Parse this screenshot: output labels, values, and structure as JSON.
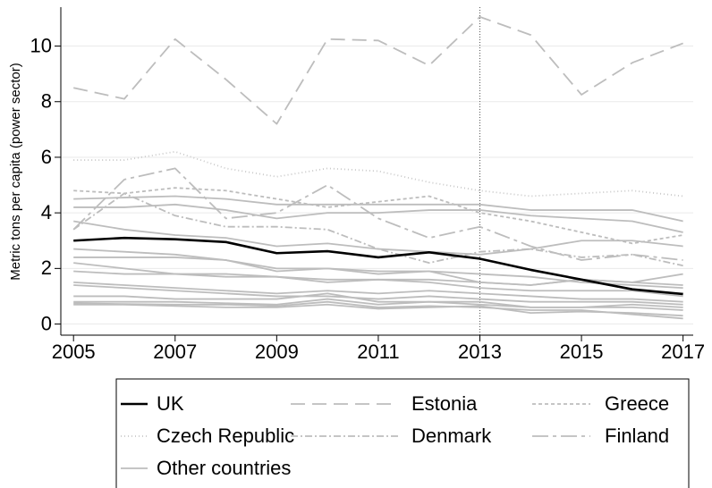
{
  "chart_data": {
    "type": "line",
    "y_label": "Metric tons per capita (power sector)",
    "x": [
      2005,
      2006,
      2007,
      2008,
      2009,
      2010,
      2011,
      2012,
      2013,
      2014,
      2015,
      2016,
      2017
    ],
    "xlim": [
      2004.75,
      2017.2
    ],
    "xticks": [
      2005,
      2007,
      2009,
      2011,
      2013,
      2015,
      2017
    ],
    "ylim": [
      -0.4,
      11.4
    ],
    "yticks": [
      0,
      2,
      4,
      6,
      8,
      10
    ],
    "grid": true,
    "xline": 2013,
    "series": [
      {
        "name": "UK",
        "color": "#000000",
        "dash": "none",
        "width": 2.6,
        "values": [
          3.0,
          3.1,
          3.05,
          2.95,
          2.55,
          2.62,
          2.4,
          2.58,
          2.35,
          1.95,
          1.6,
          1.25,
          1.08
        ]
      },
      {
        "name": "Estonia",
        "color": "#bdbdbd",
        "dash": "16,8",
        "width": 1.8,
        "values": [
          8.5,
          8.1,
          10.25,
          8.8,
          7.2,
          10.25,
          10.2,
          9.3,
          11.05,
          10.4,
          8.25,
          9.4,
          10.1
        ]
      },
      {
        "name": "Greece",
        "color": "#bdbdbd",
        "dash": "4,3",
        "width": 1.8,
        "values": [
          4.8,
          4.7,
          4.9,
          4.8,
          4.5,
          4.2,
          4.4,
          4.6,
          4.0,
          3.7,
          3.3,
          2.9,
          3.2
        ]
      },
      {
        "name": "Czech Republic",
        "color": "#c8c8c8",
        "dash": "1,3",
        "width": 1.8,
        "values": [
          5.9,
          5.9,
          6.2,
          5.6,
          5.3,
          5.6,
          5.5,
          5.1,
          4.8,
          4.6,
          4.7,
          4.8,
          4.6
        ]
      },
      {
        "name": "Denmark",
        "color": "#bdbdbd",
        "dash": "8,3,2,3",
        "width": 1.8,
        "values": [
          3.4,
          4.7,
          3.9,
          3.5,
          3.5,
          3.4,
          2.7,
          2.2,
          2.6,
          2.7,
          2.4,
          2.5,
          2.1
        ]
      },
      {
        "name": "Finland",
        "color": "#bdbdbd",
        "dash": "18,5,4,5",
        "width": 1.8,
        "values": [
          3.4,
          5.2,
          5.6,
          3.8,
          4.0,
          5.0,
          3.8,
          3.1,
          3.5,
          2.8,
          2.3,
          2.5,
          2.3
        ]
      }
    ],
    "other_countries": {
      "name": "Other countries",
      "color": "#bdbdbd",
      "width": 1.8,
      "series": [
        [
          4.5,
          4.55,
          4.6,
          4.5,
          4.3,
          4.3,
          4.3,
          4.3,
          4.3,
          4.1,
          4.1,
          4.1,
          3.7
        ],
        [
          4.2,
          4.2,
          4.3,
          4.1,
          3.8,
          4.0,
          4.0,
          4.1,
          4.1,
          3.9,
          3.8,
          3.7,
          3.3
        ],
        [
          3.7,
          3.4,
          3.2,
          3.1,
          2.8,
          2.9,
          2.7,
          2.6,
          2.5,
          2.7,
          3.0,
          3.0,
          2.8
        ],
        [
          2.7,
          2.6,
          2.5,
          2.3,
          1.9,
          2.0,
          1.8,
          1.9,
          1.5,
          1.4,
          1.6,
          1.5,
          1.8
        ],
        [
          2.4,
          2.4,
          2.4,
          2.3,
          2.0,
          2.0,
          1.9,
          1.9,
          1.8,
          1.7,
          1.5,
          1.4,
          1.3
        ],
        [
          2.2,
          2.0,
          1.8,
          1.8,
          1.7,
          1.6,
          1.6,
          1.6,
          1.5,
          1.4,
          1.6,
          1.5,
          1.4
        ],
        [
          1.9,
          1.8,
          1.8,
          1.7,
          1.7,
          1.5,
          1.6,
          1.5,
          1.3,
          1.2,
          1.2,
          1.2,
          1.0
        ],
        [
          1.5,
          1.4,
          1.3,
          1.2,
          1.1,
          1.2,
          1.1,
          1.2,
          1.1,
          1.0,
          0.9,
          0.9,
          0.8
        ],
        [
          1.4,
          1.3,
          1.2,
          1.1,
          1.0,
          1.0,
          0.9,
          1.0,
          0.9,
          0.8,
          0.8,
          0.8,
          0.7
        ],
        [
          1.0,
          1.0,
          0.9,
          0.9,
          0.9,
          1.1,
          0.8,
          0.8,
          0.8,
          0.6,
          0.6,
          0.7,
          0.6
        ],
        [
          0.8,
          0.8,
          0.8,
          0.75,
          0.7,
          0.9,
          0.7,
          0.8,
          0.7,
          0.6,
          0.6,
          0.6,
          0.5
        ],
        [
          0.7,
          0.7,
          0.65,
          0.6,
          0.6,
          0.7,
          0.55,
          0.6,
          0.65,
          0.4,
          0.45,
          0.4,
          0.3
        ],
        [
          0.75,
          0.72,
          0.7,
          0.7,
          0.65,
          0.8,
          0.6,
          0.65,
          0.6,
          0.5,
          0.5,
          0.35,
          0.2
        ]
      ]
    }
  }
}
